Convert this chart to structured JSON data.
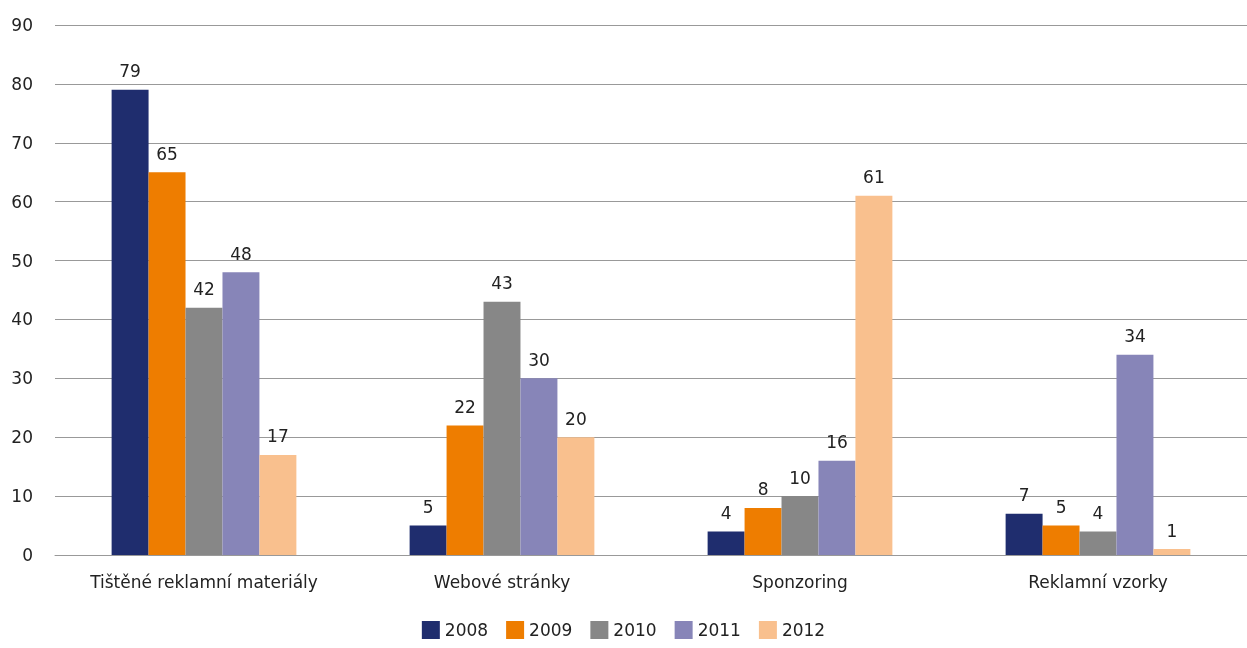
{
  "chart_data": {
    "type": "bar",
    "categories": [
      "Tištěné reklamní materiály",
      "Webové stránky",
      "Sponzoring",
      "Reklamní vzorky"
    ],
    "series": [
      {
        "name": "2008",
        "color": "#1f2d6e",
        "values": [
          79,
          5,
          4,
          7
        ]
      },
      {
        "name": "2009",
        "color": "#ee7d00",
        "values": [
          65,
          22,
          8,
          5
        ]
      },
      {
        "name": "2010",
        "color": "#878787",
        "values": [
          42,
          43,
          10,
          4
        ]
      },
      {
        "name": "2011",
        "color": "#8785b8",
        "values": [
          48,
          30,
          16,
          34
        ]
      },
      {
        "name": "2012",
        "color": "#f9c08e",
        "values": [
          17,
          20,
          61,
          1
        ]
      }
    ],
    "ylim": [
      0,
      90
    ],
    "yticks": [
      0,
      10,
      20,
      30,
      40,
      50,
      60,
      70,
      80,
      90
    ],
    "grid": "y",
    "legend": "bottom",
    "data_labels": true
  }
}
